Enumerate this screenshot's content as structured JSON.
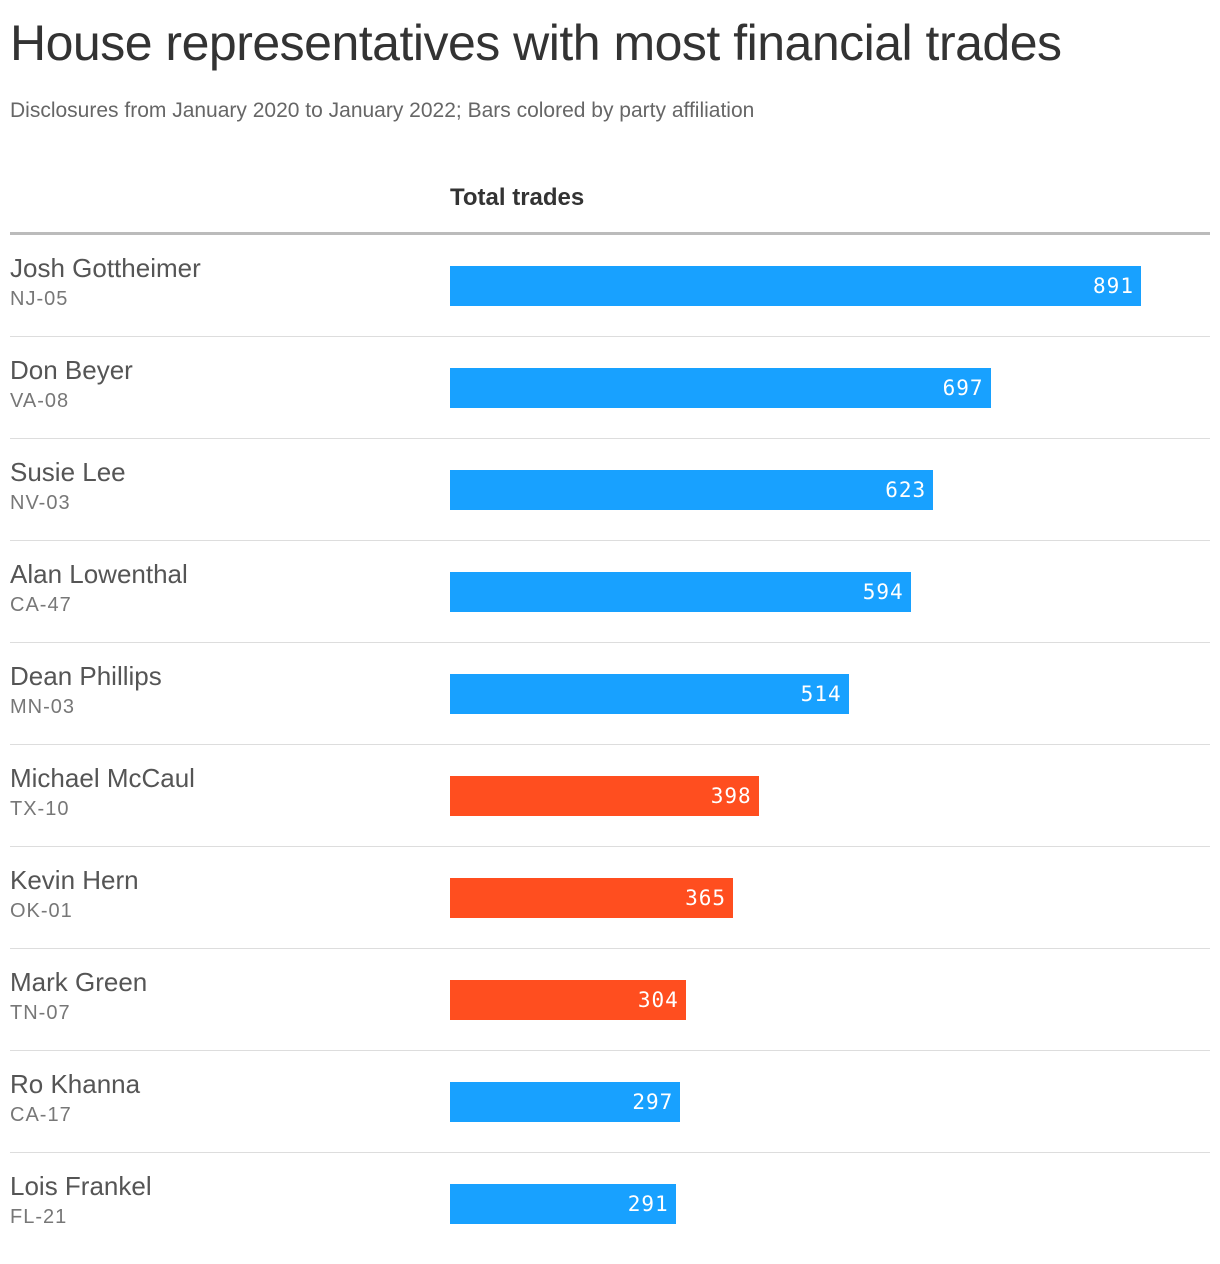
{
  "title": "House representatives with most financial trades",
  "subtitle": "Disclosures from January 2020 to January 2022; Bars colored by party affiliation",
  "colors": {
    "blue": "#18a1ff",
    "red": "#ff4e1f"
  },
  "chart_data": {
    "type": "bar",
    "orientation": "horizontal",
    "title": "House representatives with most financial trades",
    "subtitle": "Disclosures from January 2020 to January 2022; Bars colored by party affiliation",
    "column_header": "Total trades",
    "xlim": [
      0,
      980
    ],
    "categories": [
      "Josh Gottheimer",
      "Don Beyer",
      "Susie Lee",
      "Alan Lowenthal",
      "Dean Phillips",
      "Michael McCaul",
      "Kevin Hern",
      "Mark Green",
      "Ro Khanna",
      "Lois Frankel"
    ],
    "districts": [
      "NJ-05",
      "VA-08",
      "NV-03",
      "CA-47",
      "MN-03",
      "TX-10",
      "OK-01",
      "TN-07",
      "CA-17",
      "FL-21"
    ],
    "values": [
      891,
      697,
      623,
      594,
      514,
      398,
      365,
      304,
      297,
      291
    ],
    "bar_colors": [
      "blue",
      "blue",
      "blue",
      "blue",
      "blue",
      "red",
      "red",
      "red",
      "blue",
      "blue"
    ]
  }
}
